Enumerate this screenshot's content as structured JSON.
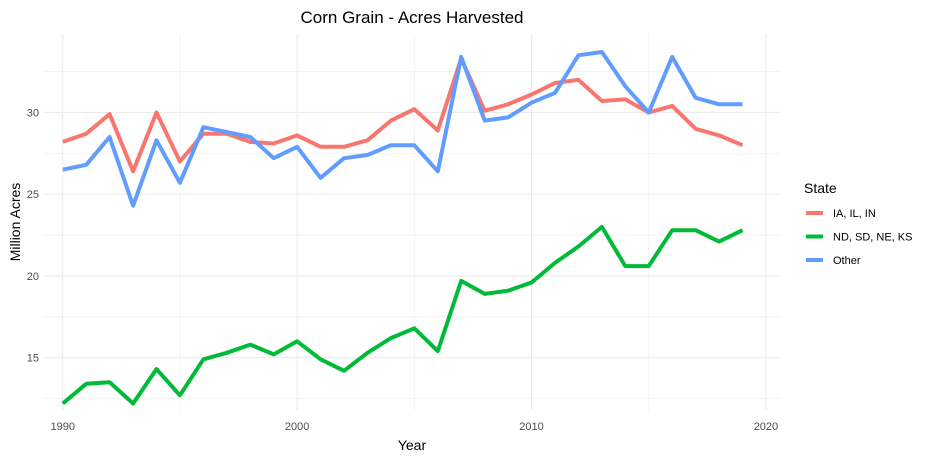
{
  "chart_data": {
    "type": "line",
    "title": "Corn Grain - Acres Harvested",
    "xlabel": "Year",
    "ylabel": "Million Acres",
    "xlim": [
      1989.2,
      2020.6
    ],
    "ylim": [
      11.8,
      34.8
    ],
    "x_ticks": [
      1990,
      2000,
      2010,
      2020
    ],
    "y_ticks": [
      15,
      20,
      25,
      30
    ],
    "x_tick_labels": [
      "1990",
      "2000",
      "2010",
      "2020"
    ],
    "y_tick_labels": [
      "15",
      "20",
      "25",
      "30"
    ],
    "grid": true,
    "legend": {
      "title": "State",
      "position": "right"
    },
    "x": [
      1990,
      1991,
      1992,
      1993,
      1994,
      1995,
      1996,
      1997,
      1998,
      1999,
      2000,
      2001,
      2002,
      2003,
      2004,
      2005,
      2006,
      2007,
      2008,
      2009,
      2010,
      2011,
      2012,
      2013,
      2014,
      2015,
      2016,
      2017,
      2018,
      2019
    ],
    "series": [
      {
        "name": "IA, IL, IN",
        "color": "#F8766D",
        "values": [
          28.2,
          28.7,
          29.9,
          26.4,
          30.0,
          27.0,
          28.7,
          28.7,
          28.2,
          28.1,
          28.6,
          27.9,
          27.9,
          28.3,
          29.5,
          30.2,
          28.9,
          33.3,
          30.1,
          30.5,
          31.1,
          31.8,
          32.0,
          30.7,
          30.8,
          30.0,
          30.4,
          29.0,
          28.6,
          28.0
        ]
      },
      {
        "name": "ND, SD, NE, KS",
        "color": "#00BA38",
        "values": [
          12.2,
          13.4,
          13.5,
          12.2,
          14.3,
          12.7,
          14.9,
          15.3,
          15.8,
          15.2,
          16.0,
          14.9,
          14.2,
          15.3,
          16.2,
          16.8,
          15.4,
          19.7,
          18.9,
          19.1,
          19.6,
          20.8,
          21.8,
          23.0,
          20.6,
          20.6,
          22.8,
          22.8,
          22.1,
          22.8
        ]
      },
      {
        "name": "Other",
        "color": "#619CFF",
        "values": [
          26.5,
          26.8,
          28.5,
          24.3,
          28.3,
          25.7,
          29.1,
          28.8,
          28.5,
          27.2,
          27.9,
          26.0,
          27.2,
          27.4,
          28.0,
          28.0,
          26.4,
          33.4,
          29.5,
          29.7,
          30.6,
          31.2,
          33.5,
          33.7,
          31.6,
          30.0,
          33.4,
          30.9,
          30.5,
          30.5
        ]
      }
    ]
  }
}
